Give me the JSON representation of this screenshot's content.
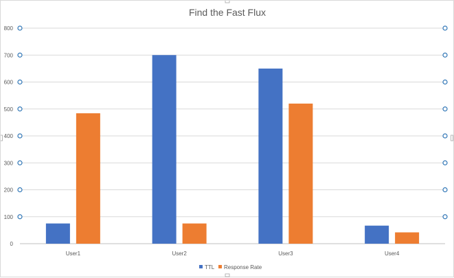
{
  "chart_data": {
    "type": "bar",
    "title": "Find the Fast Flux",
    "categories": [
      "User1",
      "User2",
      "User3",
      "User4"
    ],
    "series": [
      {
        "name": "TTL",
        "values": [
          75,
          700,
          650,
          67
        ],
        "color": "#4472c4"
      },
      {
        "name": "Response Rate",
        "values": [
          484,
          75,
          520,
          42
        ],
        "color": "#ed7d31"
      }
    ],
    "ylim": [
      0,
      800
    ],
    "yticks": [
      0,
      100,
      200,
      300,
      400,
      500,
      600,
      700,
      800
    ],
    "grid": true,
    "legend_position": "bottom",
    "gridline_color": "#d9d9d9",
    "selection_marker_color": "#2e75b6"
  }
}
